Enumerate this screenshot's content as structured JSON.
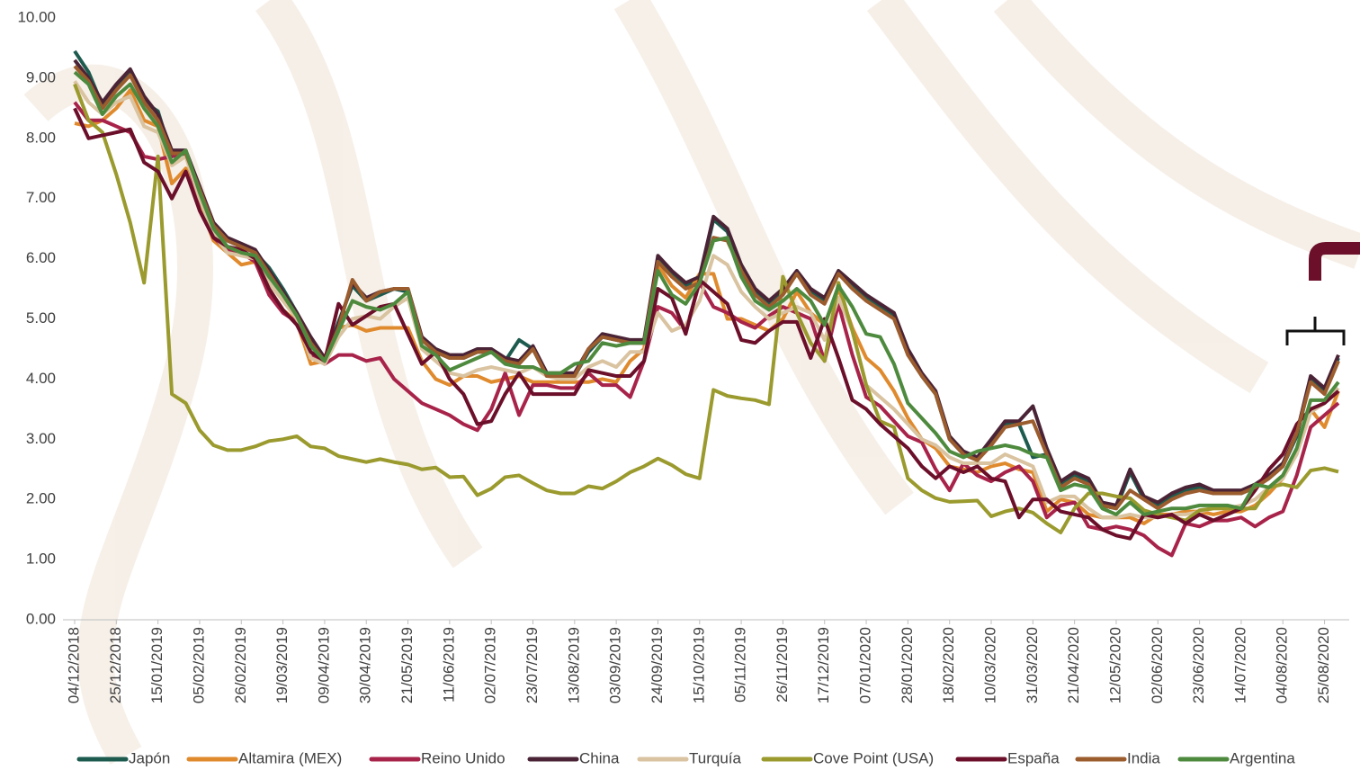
{
  "chart_data": {
    "type": "line",
    "categories": [
      "04/12/2018",
      null,
      null,
      "25/12/2018",
      null,
      null,
      "15/01/2019",
      null,
      null,
      "05/02/2019",
      null,
      null,
      "26/02/2019",
      null,
      null,
      "19/03/2019",
      null,
      null,
      "09/04/2019",
      null,
      null,
      "30/04/2019",
      null,
      null,
      "21/05/2019",
      null,
      null,
      "11/06/2019",
      null,
      null,
      "02/07/2019",
      null,
      null,
      "23/07/2019",
      null,
      null,
      "13/08/2019",
      null,
      null,
      "03/09/2019",
      null,
      null,
      "24/09/2019",
      null,
      null,
      "15/10/2019",
      null,
      null,
      "05/11/2019",
      null,
      null,
      "26/11/2019",
      null,
      null,
      "17/12/2019",
      null,
      null,
      "07/01/2020",
      null,
      null,
      "28/01/2020",
      null,
      null,
      "18/02/2020",
      null,
      null,
      "10/03/2020",
      null,
      null,
      "31/03/2020",
      null,
      null,
      "21/04/2020",
      null,
      null,
      "12/05/2020",
      null,
      null,
      "02/06/2020",
      null,
      null,
      "23/06/2020",
      null,
      null,
      "14/07/2020",
      null,
      null,
      "04/08/2020",
      null,
      null,
      "25/08/2020",
      null
    ],
    "series": [
      {
        "name": "Japón",
        "color": "#1e5b4f",
        "values": [
          9.45,
          9.1,
          8.55,
          8.85,
          9.1,
          8.6,
          8.45,
          7.7,
          7.75,
          7.2,
          6.55,
          6.3,
          6.2,
          6.1,
          5.85,
          5.5,
          5.1,
          4.65,
          4.3,
          4.95,
          5.55,
          5.3,
          5.4,
          5.5,
          5.45,
          4.65,
          4.45,
          4.35,
          4.35,
          4.45,
          4.45,
          4.3,
          4.65,
          4.5,
          4.05,
          4.05,
          4.05,
          4.45,
          4.7,
          4.65,
          4.6,
          4.6,
          6.0,
          5.75,
          5.55,
          5.65,
          6.65,
          6.45,
          5.85,
          5.45,
          5.25,
          5.45,
          5.75,
          5.45,
          5.3,
          5.75,
          5.55,
          5.35,
          5.2,
          5.05,
          4.45,
          4.05,
          3.75,
          3.0,
          2.75,
          2.65,
          2.95,
          3.25,
          3.25,
          2.7,
          2.75,
          2.25,
          2.4,
          2.3,
          1.9,
          1.85,
          2.45,
          2.0,
          1.9,
          2.05,
          2.15,
          2.2,
          2.1,
          2.1,
          2.1,
          2.2,
          2.35,
          2.55,
          3.05,
          4.0,
          3.8,
          4.35
        ]
      },
      {
        "name": "Altamira (MEX)",
        "color": "#e08a2e",
        "values": [
          8.25,
          8.2,
          8.3,
          8.5,
          8.8,
          8.3,
          8.2,
          7.25,
          7.5,
          6.9,
          6.3,
          6.1,
          5.9,
          5.95,
          5.5,
          5.15,
          4.95,
          4.25,
          4.3,
          4.85,
          4.9,
          4.8,
          4.85,
          4.85,
          4.85,
          4.3,
          4.0,
          3.9,
          4.05,
          4.05,
          3.95,
          4.0,
          4.05,
          3.95,
          3.95,
          3.95,
          3.95,
          3.95,
          4.0,
          3.95,
          4.3,
          4.5,
          5.9,
          5.55,
          5.35,
          5.75,
          5.75,
          5.0,
          5.0,
          4.9,
          4.8,
          5.0,
          5.45,
          5.1,
          4.9,
          5.5,
          4.85,
          4.35,
          4.15,
          3.8,
          3.35,
          3.0,
          2.85,
          2.55,
          2.5,
          2.45,
          2.55,
          2.6,
          2.5,
          2.45,
          1.8,
          2.0,
          1.95,
          1.75,
          1.7,
          1.7,
          1.7,
          1.6,
          1.75,
          1.75,
          1.8,
          1.8,
          1.75,
          1.8,
          1.8,
          1.9,
          2.1,
          2.35,
          2.8,
          3.5,
          3.2,
          3.8
        ]
      },
      {
        "name": "Reino Unido",
        "color": "#a8234a",
        "values": [
          8.6,
          8.3,
          8.3,
          8.2,
          8.1,
          7.7,
          7.65,
          7.7,
          7.8,
          6.8,
          6.35,
          6.15,
          6.1,
          5.95,
          5.4,
          5.1,
          4.95,
          4.4,
          4.25,
          4.4,
          4.4,
          4.3,
          4.35,
          4.0,
          3.8,
          3.6,
          3.5,
          3.4,
          3.25,
          3.15,
          3.5,
          4.1,
          3.4,
          3.9,
          3.9,
          3.85,
          3.85,
          4.1,
          3.9,
          3.9,
          3.7,
          4.3,
          5.2,
          5.1,
          4.8,
          5.6,
          5.2,
          5.1,
          4.95,
          4.85,
          5.05,
          5.2,
          5.1,
          5.0,
          4.3,
          5.25,
          4.4,
          3.7,
          3.55,
          3.3,
          3.05,
          2.95,
          2.5,
          2.15,
          2.6,
          2.4,
          2.3,
          2.45,
          2.55,
          2.3,
          1.7,
          1.9,
          1.95,
          1.55,
          1.5,
          1.55,
          1.5,
          1.4,
          1.2,
          1.07,
          1.6,
          1.55,
          1.65,
          1.65,
          1.7,
          1.55,
          1.7,
          1.8,
          2.4,
          3.2,
          3.4,
          3.6
        ]
      },
      {
        "name": "China",
        "color": "#4a2436",
        "values": [
          9.3,
          9.0,
          8.6,
          8.9,
          9.15,
          8.7,
          8.4,
          7.8,
          7.8,
          7.2,
          6.6,
          6.35,
          6.25,
          6.15,
          5.8,
          5.45,
          5.1,
          4.7,
          4.35,
          4.9,
          5.6,
          5.35,
          5.45,
          5.5,
          5.5,
          4.7,
          4.5,
          4.4,
          4.4,
          4.5,
          4.5,
          4.35,
          4.3,
          4.55,
          4.1,
          4.1,
          4.1,
          4.5,
          4.75,
          4.7,
          4.65,
          4.65,
          6.05,
          5.8,
          5.6,
          5.7,
          6.7,
          6.5,
          5.9,
          5.5,
          5.3,
          5.5,
          5.8,
          5.5,
          5.35,
          5.8,
          5.6,
          5.4,
          5.25,
          5.1,
          4.5,
          4.1,
          3.8,
          3.05,
          2.8,
          2.7,
          3.0,
          3.3,
          3.3,
          3.55,
          2.85,
          2.3,
          2.45,
          2.35,
          1.95,
          1.9,
          2.5,
          2.05,
          1.95,
          2.1,
          2.2,
          2.25,
          2.15,
          2.15,
          2.15,
          2.25,
          2.4,
          2.6,
          3.1,
          4.05,
          3.85,
          4.4
        ]
      },
      {
        "name": "Turquía",
        "color": "#d9c3a0",
        "values": [
          8.95,
          8.6,
          8.4,
          8.6,
          8.7,
          8.2,
          8.1,
          7.55,
          7.7,
          7.0,
          6.4,
          6.1,
          6.05,
          6.0,
          5.6,
          5.3,
          5.0,
          4.35,
          4.25,
          4.7,
          5.0,
          5.05,
          5.0,
          5.2,
          5.35,
          4.5,
          4.3,
          4.1,
          4.05,
          4.15,
          4.2,
          4.15,
          4.1,
          4.2,
          4.05,
          4.0,
          4.0,
          4.2,
          4.3,
          4.2,
          4.45,
          4.45,
          5.1,
          4.8,
          4.9,
          5.3,
          6.05,
          5.9,
          5.45,
          5.2,
          5.0,
          5.1,
          5.2,
          5.1,
          4.65,
          5.35,
          4.8,
          3.9,
          3.7,
          3.5,
          3.25,
          3.0,
          2.9,
          2.7,
          2.6,
          2.6,
          2.6,
          2.75,
          2.65,
          2.55,
          1.95,
          2.05,
          2.05,
          1.85,
          1.7,
          1.7,
          1.75,
          1.7,
          1.7,
          1.75,
          1.75,
          1.8,
          1.85,
          1.85,
          1.9,
          2.0,
          2.2,
          2.35,
          2.75,
          3.45,
          3.6,
          3.85
        ]
      },
      {
        "name": "Cove Point (USA)",
        "color": "#9a9a2e",
        "values": [
          8.9,
          8.3,
          8.1,
          7.4,
          6.6,
          5.6,
          7.7,
          3.75,
          3.6,
          3.15,
          2.9,
          2.82,
          2.82,
          2.88,
          2.97,
          3.0,
          3.05,
          2.88,
          2.85,
          2.72,
          2.67,
          2.62,
          2.67,
          2.62,
          2.58,
          2.5,
          2.53,
          2.37,
          2.38,
          2.07,
          2.18,
          2.37,
          2.4,
          2.27,
          2.15,
          2.1,
          2.1,
          2.22,
          2.18,
          2.3,
          2.45,
          2.55,
          2.68,
          2.57,
          2.42,
          2.35,
          3.82,
          3.72,
          3.68,
          3.65,
          3.58,
          5.7,
          5.1,
          4.6,
          4.3,
          5.6,
          4.8,
          3.9,
          3.3,
          3.2,
          2.35,
          2.15,
          2.02,
          1.96,
          1.97,
          1.98,
          1.72,
          1.8,
          1.85,
          1.78,
          1.6,
          1.45,
          1.85,
          2.1,
          2.1,
          2.05,
          2.02,
          1.82,
          1.75,
          1.7,
          1.65,
          1.82,
          1.85,
          1.85,
          1.85,
          1.85,
          2.2,
          2.25,
          2.2,
          2.48,
          2.52,
          2.46
        ]
      },
      {
        "name": "España",
        "color": "#6b0f2a",
        "values": [
          8.5,
          8.0,
          8.05,
          8.1,
          8.15,
          7.6,
          7.45,
          7.0,
          7.45,
          6.8,
          6.35,
          6.2,
          6.15,
          6.0,
          5.5,
          5.15,
          4.9,
          4.45,
          4.3,
          5.25,
          4.9,
          5.05,
          5.2,
          5.25,
          4.75,
          4.25,
          4.45,
          4.0,
          3.75,
          3.25,
          3.3,
          3.75,
          4.1,
          3.75,
          3.75,
          3.75,
          3.75,
          4.15,
          4.1,
          4.05,
          4.05,
          4.3,
          5.5,
          5.35,
          4.75,
          5.65,
          5.45,
          5.25,
          4.65,
          4.6,
          4.8,
          4.95,
          4.95,
          4.35,
          5.0,
          4.35,
          3.65,
          3.5,
          3.25,
          3.05,
          2.85,
          2.55,
          2.35,
          2.55,
          2.45,
          2.55,
          2.35,
          2.3,
          1.7,
          2.0,
          2.0,
          1.8,
          1.75,
          1.7,
          1.5,
          1.4,
          1.35,
          1.75,
          1.7,
          1.75,
          1.6,
          1.75,
          1.65,
          1.75,
          1.85,
          2.15,
          2.5,
          2.75,
          3.25,
          3.5,
          3.6,
          3.8
        ]
      },
      {
        "name": "India",
        "color": "#9b5c2e",
        "values": [
          9.2,
          8.95,
          8.5,
          8.8,
          9.05,
          8.6,
          8.3,
          7.75,
          7.75,
          7.15,
          6.55,
          6.3,
          6.2,
          6.1,
          5.75,
          5.4,
          5.05,
          4.6,
          4.3,
          4.85,
          5.65,
          5.3,
          5.45,
          5.5,
          5.5,
          4.65,
          4.45,
          4.35,
          4.35,
          4.45,
          4.45,
          4.3,
          4.25,
          4.5,
          4.05,
          4.05,
          4.05,
          4.5,
          4.7,
          4.65,
          4.6,
          4.6,
          5.95,
          5.7,
          5.5,
          5.6,
          6.35,
          6.3,
          5.8,
          5.4,
          5.2,
          5.4,
          5.75,
          5.4,
          5.25,
          5.75,
          5.5,
          5.3,
          5.15,
          5.0,
          4.4,
          4.05,
          3.75,
          3.0,
          2.75,
          2.65,
          2.9,
          3.2,
          3.25,
          3.3,
          2.75,
          2.2,
          2.35,
          2.25,
          1.9,
          1.85,
          2.15,
          2.0,
          1.85,
          2.0,
          2.1,
          2.15,
          2.1,
          2.1,
          2.1,
          2.2,
          2.35,
          2.55,
          3.1,
          3.95,
          3.75,
          4.3
        ]
      },
      {
        "name": "Argentina",
        "color": "#4e8a3e",
        "values": [
          9.1,
          8.9,
          8.4,
          8.7,
          8.9,
          8.5,
          8.2,
          7.6,
          7.8,
          7.1,
          6.5,
          6.2,
          6.1,
          6.05,
          5.7,
          5.4,
          5.05,
          4.55,
          4.3,
          4.8,
          5.3,
          5.2,
          5.15,
          5.25,
          5.45,
          4.55,
          4.4,
          4.15,
          4.25,
          4.35,
          4.45,
          4.25,
          4.2,
          4.2,
          4.1,
          4.1,
          4.25,
          4.3,
          4.6,
          4.55,
          4.6,
          4.6,
          5.8,
          5.4,
          5.25,
          5.6,
          6.3,
          6.35,
          5.7,
          5.3,
          5.15,
          5.3,
          5.5,
          5.3,
          4.9,
          5.55,
          5.2,
          4.75,
          4.7,
          4.25,
          3.6,
          3.35,
          3.1,
          2.8,
          2.7,
          2.8,
          2.85,
          2.9,
          2.85,
          2.75,
          2.7,
          2.15,
          2.25,
          2.2,
          1.85,
          1.75,
          1.95,
          1.75,
          1.8,
          1.85,
          1.85,
          1.9,
          1.9,
          1.9,
          1.85,
          2.25,
          2.2,
          2.4,
          2.85,
          3.65,
          3.65,
          3.95
        ]
      }
    ],
    "ylim": [
      0,
      10
    ],
    "yticks": [
      {
        "value": 0,
        "label": "0.00"
      },
      {
        "value": 1,
        "label": "1.00"
      },
      {
        "value": 2,
        "label": "2.00"
      },
      {
        "value": 3,
        "label": "3.00"
      },
      {
        "value": 4,
        "label": "4.00"
      },
      {
        "value": 5,
        "label": "5.00"
      },
      {
        "value": 6,
        "label": "6.00"
      },
      {
        "value": 7,
        "label": "7.00"
      },
      {
        "value": 8,
        "label": "8.00"
      },
      {
        "value": 9,
        "label": "9.00"
      },
      {
        "value": 10,
        "label": "10.00"
      }
    ],
    "grid": false,
    "legend": "bottom"
  }
}
